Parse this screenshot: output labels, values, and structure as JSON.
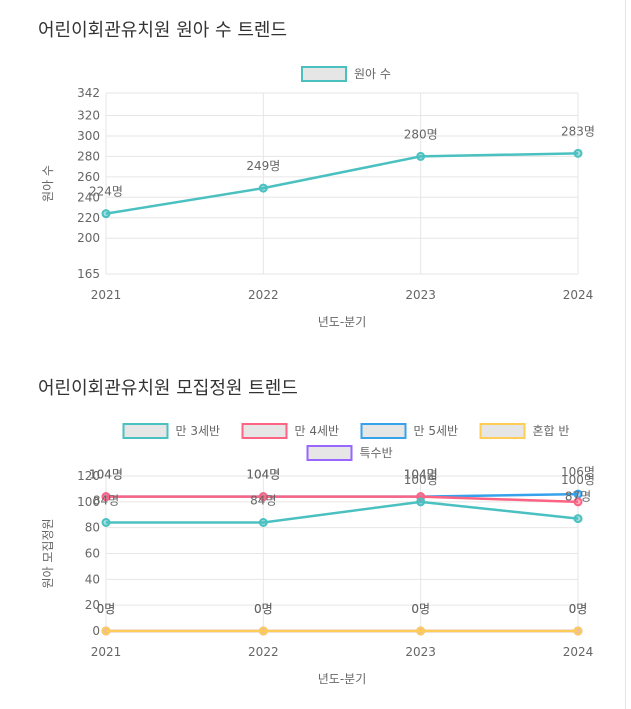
{
  "section1": {
    "title": "어린이회관유치원 원아 수 트렌드"
  },
  "section2": {
    "title": "어린이회관유치원 모집정원 트렌드"
  },
  "chart_data": [
    {
      "type": "line",
      "title": "어린이회관유치원 원아 수 트렌드",
      "x": [
        "2021",
        "2022",
        "2023",
        "2024"
      ],
      "series": [
        {
          "name": "원아 수",
          "values": [
            224,
            249,
            280,
            283
          ],
          "color": "#4bc0c0"
        }
      ],
      "point_labels": [
        "224명",
        "249명",
        "280명",
        "283명"
      ],
      "xlabel": "년도-분기",
      "ylabel": "원아 수",
      "yticks": [
        165,
        200,
        220,
        240,
        260,
        280,
        300,
        320,
        342
      ],
      "ylim": [
        165,
        342
      ],
      "grid": true,
      "legend": "top-center"
    },
    {
      "type": "line",
      "title": "어린이회관유치원 모집정원 트렌드",
      "x": [
        "2021",
        "2022",
        "2023",
        "2024"
      ],
      "series": [
        {
          "name": "만 3세반",
          "values": [
            84,
            84,
            100,
            87
          ],
          "labels": [
            "84명",
            "84명",
            "100명",
            "87명"
          ],
          "color": "#4bc0c0"
        },
        {
          "name": "만 4세반",
          "values": [
            104,
            104,
            104,
            100
          ],
          "labels": [
            "104명",
            "104명",
            "104명",
            "100명"
          ],
          "color": "#ff6384"
        },
        {
          "name": "만 5세반",
          "values": [
            104,
            104,
            104,
            106
          ],
          "labels": [
            "104명",
            "104명",
            "104명",
            "106명"
          ],
          "color": "#36a2eb"
        },
        {
          "name": "혼합 반",
          "values": [
            0,
            0,
            0,
            0
          ],
          "labels": [
            "0명",
            "0명",
            "0명",
            "0명"
          ],
          "color": "#ffcd56"
        },
        {
          "name": "특수반",
          "values": [
            0,
            0,
            0,
            0
          ],
          "labels": [
            "0명",
            "0명",
            "0명",
            "0명"
          ],
          "color": "#9966ff"
        }
      ],
      "xlabel": "년도-분기",
      "ylabel": "원아 모집정원",
      "yticks": [
        0,
        20,
        40,
        60,
        80,
        100,
        120
      ],
      "ylim": [
        0,
        120
      ],
      "grid": true,
      "legend": "top-center"
    }
  ]
}
